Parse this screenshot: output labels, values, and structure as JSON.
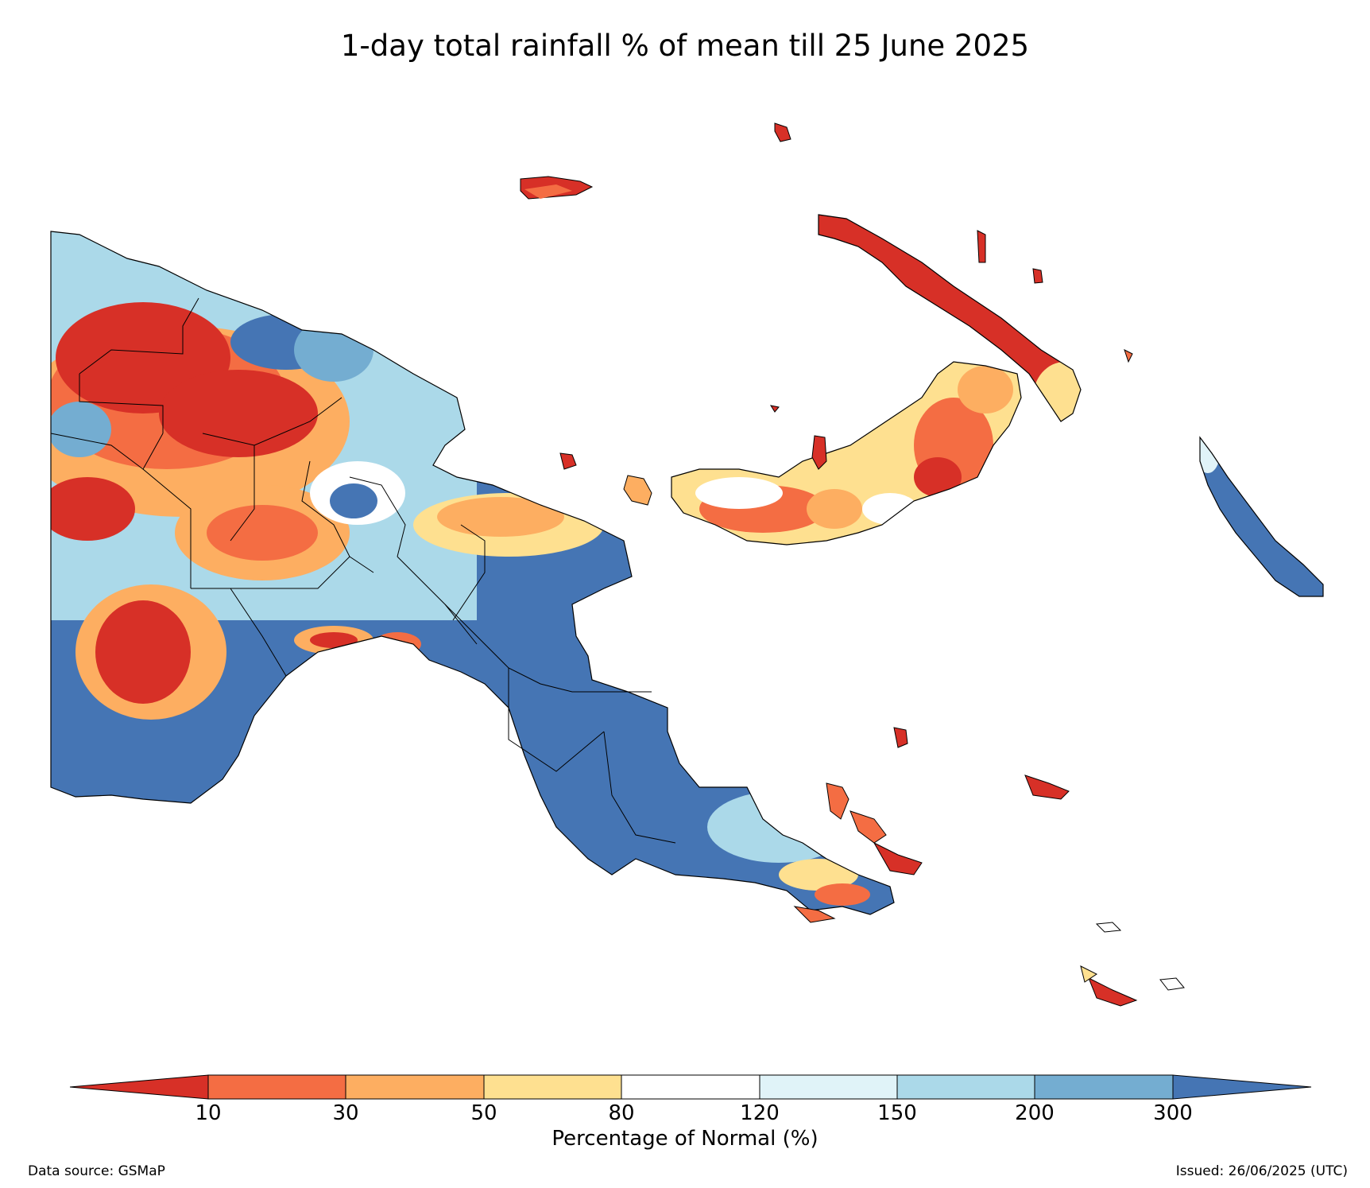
{
  "title": "1-day total rainfall % of mean till 25 June 2025",
  "colorbar": {
    "label": "Percentage of Normal (%)",
    "ticks": [
      "10",
      "30",
      "50",
      "80",
      "120",
      "150",
      "200",
      "300"
    ],
    "colors": [
      "#d73027",
      "#f46d43",
      "#fdae61",
      "#fee090",
      "#ffffff",
      "#e0f3f8",
      "#abd9e9",
      "#74add1",
      "#4575b4"
    ]
  },
  "footer": {
    "source": "Data source: GSMaP",
    "issued": "Issued: 26/06/2025 (UTC)"
  }
}
